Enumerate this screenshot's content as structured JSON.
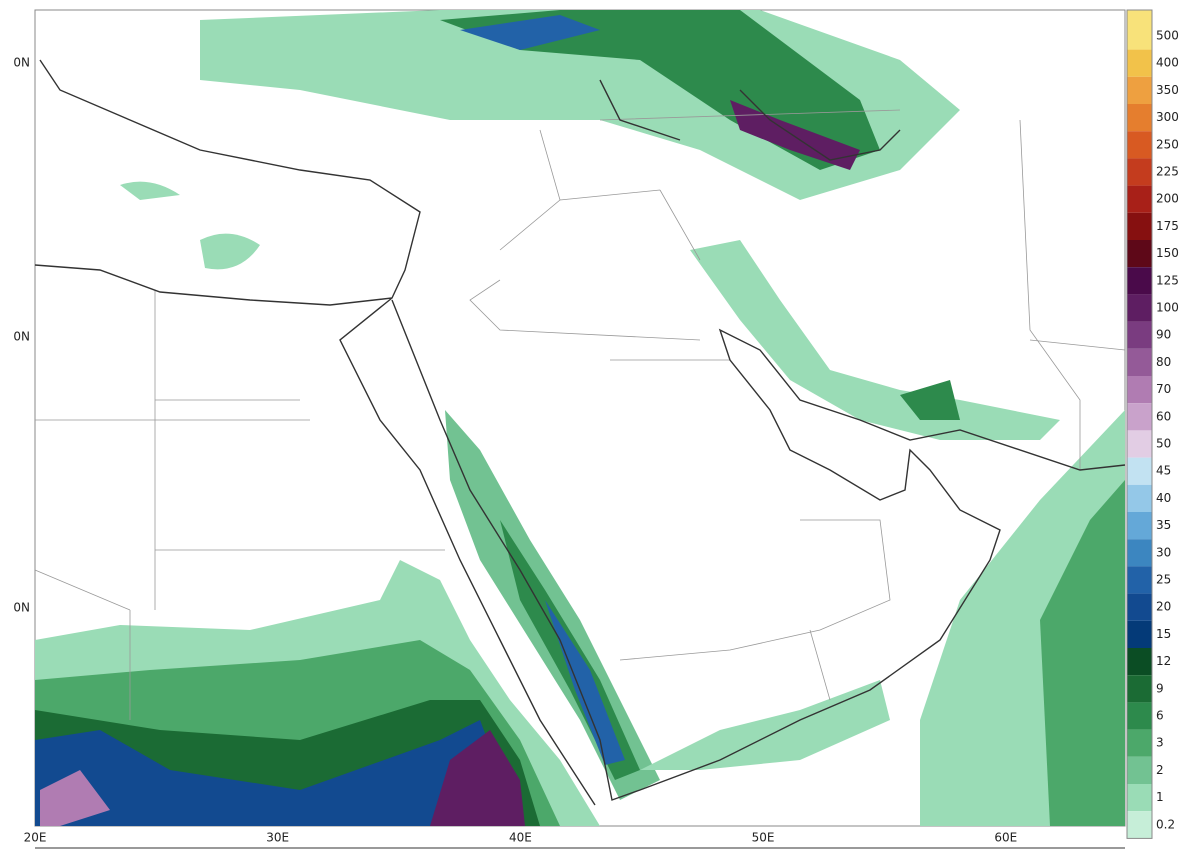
{
  "colorbar": {
    "levels": [
      "500",
      "400",
      "350",
      "300",
      "250",
      "225",
      "200",
      "175",
      "150",
      "125",
      "100",
      "90",
      "80",
      "70",
      "60",
      "50",
      "45",
      "40",
      "35",
      "30",
      "25",
      "20",
      "15",
      "12",
      "9",
      "6",
      "3",
      "2",
      "1",
      "0.2"
    ],
    "colors": [
      "#f8e27a",
      "#f2c24a",
      "#eea040",
      "#e57e2e",
      "#d85a22",
      "#c43c1e",
      "#a82018",
      "#861010",
      "#5e0818",
      "#4a0a4a",
      "#5e1e62",
      "#7a3c80",
      "#945a98",
      "#b07cb2",
      "#c9a2cb",
      "#e2cde4",
      "#c2e2f2",
      "#94c8e8",
      "#64a8d8",
      "#3c86c0",
      "#2262a8",
      "#124a90",
      "#043a78",
      "#0b4d24",
      "#1b6b34",
      "#2d8a4c",
      "#4ca86a",
      "#72c292",
      "#9adcb6",
      "#c6eed8"
    ]
  },
  "axes": {
    "x_labels": [
      "20E",
      "30E",
      "40E",
      "50E",
      "60E"
    ],
    "y_labels": [
      "0N",
      "0N",
      "0N"
    ]
  }
}
